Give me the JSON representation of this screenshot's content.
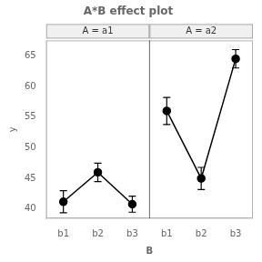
{
  "chart_data": {
    "type": "line",
    "title": "A*B effect plot",
    "xlabel": "B",
    "ylabel": "y",
    "categories": [
      "b1",
      "b2",
      "b3"
    ],
    "series": [
      {
        "name": "A = a1",
        "values": [
          41.2,
          46.0,
          40.8
        ],
        "errors": [
          1.8,
          1.5,
          1.3
        ]
      },
      {
        "name": "A = a2",
        "values": [
          56.0,
          45.0,
          64.5
        ],
        "errors": [
          2.2,
          1.8,
          1.5
        ]
      }
    ],
    "color": "black",
    "marker": "circle",
    "ylim": [
      38.5,
      67.5
    ],
    "yticks": [
      40,
      45,
      50,
      55,
      60,
      65
    ],
    "grid": false
  }
}
